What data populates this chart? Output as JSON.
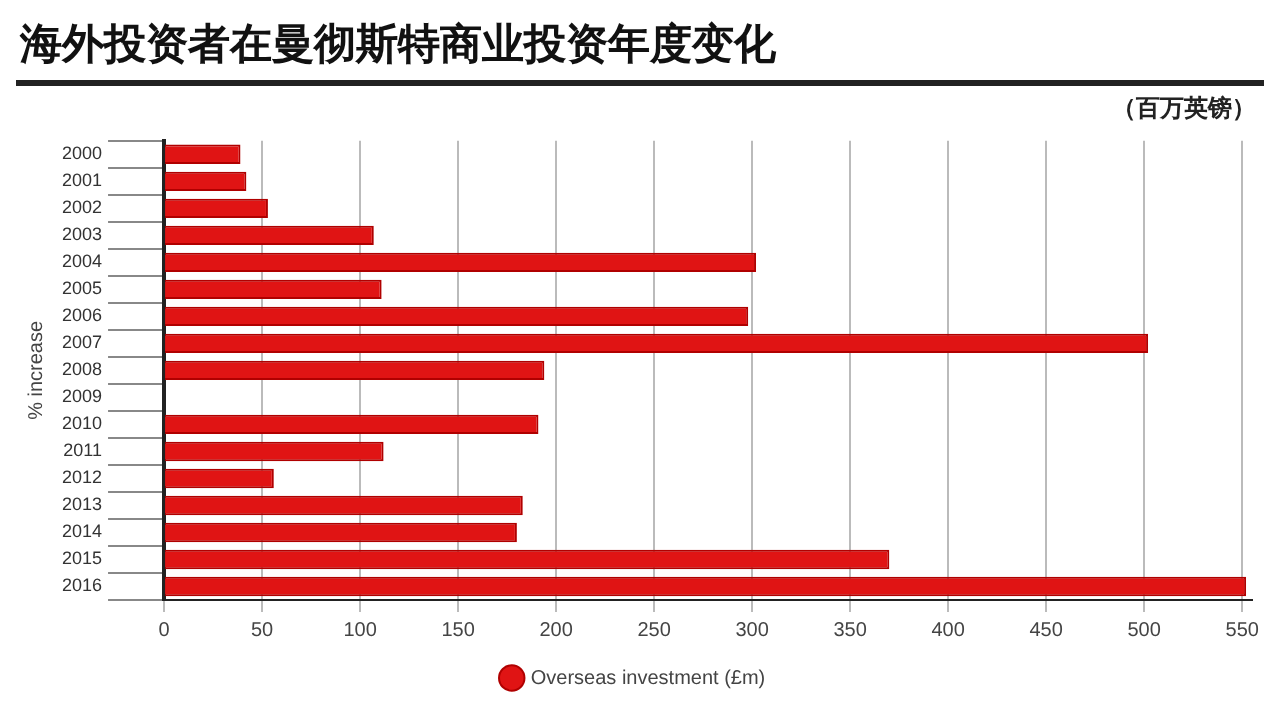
{
  "chart_data": {
    "type": "bar",
    "orientation": "horizontal",
    "title": "海外投资者在曼彻斯特商业投资年度变化",
    "ylabel": "% increase",
    "annotations": [
      "（百万英镑）"
    ],
    "categories": [
      "2000",
      "2001",
      "2002",
      "2003",
      "2004",
      "2005",
      "2006",
      "2007",
      "2008",
      "2009",
      "2010",
      "2011",
      "2012",
      "2013",
      "2014",
      "2015",
      "2016"
    ],
    "series": [
      {
        "name": "Overseas investment (£m)",
        "color": "#e01414",
        "values": [
          39,
          42,
          53,
          107,
          302,
          111,
          298,
          502,
          194,
          null,
          191,
          112,
          56,
          183,
          180,
          370,
          552
        ]
      }
    ],
    "xlim": [
      0,
      555
    ],
    "xticks": [
      0,
      50,
      100,
      150,
      200,
      250,
      300,
      350,
      400,
      450,
      500,
      550
    ],
    "grid": "x",
    "legend": "bottom"
  }
}
